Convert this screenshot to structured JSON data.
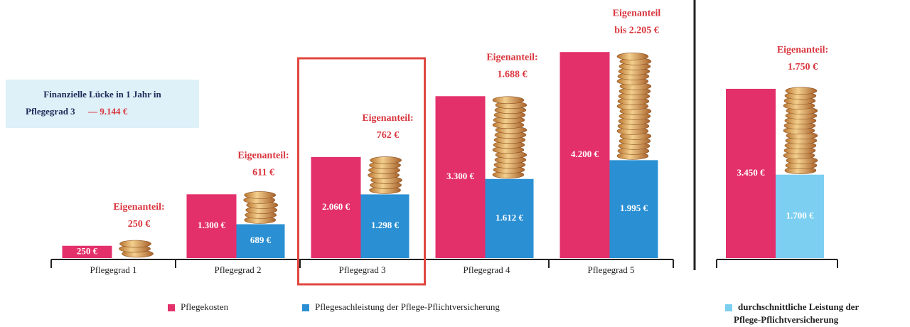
{
  "chart_data": [
    {
      "type": "bar",
      "categories": [
        "Pflegegrad 1",
        "Pflegegrad 2",
        "Pflegegrad 3",
        "Pflegegrad 4",
        "Pflegegrad 5"
      ],
      "series": [
        {
          "name": "Pflegekosten",
          "color": "#e3306b",
          "values": [
            250,
            1300,
            2060,
            3300,
            4200
          ],
          "value_labels": [
            "250 €",
            "1.300 €",
            "2.060 €",
            "3.300 €",
            "4.200 €"
          ]
        },
        {
          "name": "Pflegesachleistung der Pflege-Pflichtversicherung",
          "color": "#2a8fd3",
          "values": [
            null,
            689,
            1298,
            1612,
            1995
          ],
          "value_labels": [
            null,
            "689 €",
            "1.298 €",
            "1.612 €",
            "1.995 €"
          ]
        }
      ],
      "annotations": [
        [
          "Eigenanteil:",
          "250 €"
        ],
        [
          "Eigenanteil:",
          "611 €"
        ],
        [
          "Eigenanteil:",
          "762 €"
        ],
        [
          "Eigenanteil:",
          "1.688 €"
        ],
        [
          "Eigenanteil",
          "bis 2.205 €"
        ]
      ],
      "highlight": 2,
      "note": {
        "line1": "Finanzielle Lücke in 1 Jahr in",
        "line2": "Pflegegrad 3",
        "amount": "— 9.144 €"
      }
    },
    {
      "type": "bar",
      "categories": [
        null
      ],
      "series": [
        {
          "color": "#e3306b",
          "values": [
            3450
          ],
          "value_labels": [
            "3.450 €"
          ]
        },
        {
          "name": "durchschnittliche Leistung der Pflege-Pflichtversicherung",
          "color": "#7ccff0",
          "values": [
            1700
          ],
          "value_labels": [
            "1.700 €"
          ]
        }
      ],
      "annotations": [
        [
          "Eigenanteil:",
          "1.750 €"
        ]
      ]
    }
  ]
}
